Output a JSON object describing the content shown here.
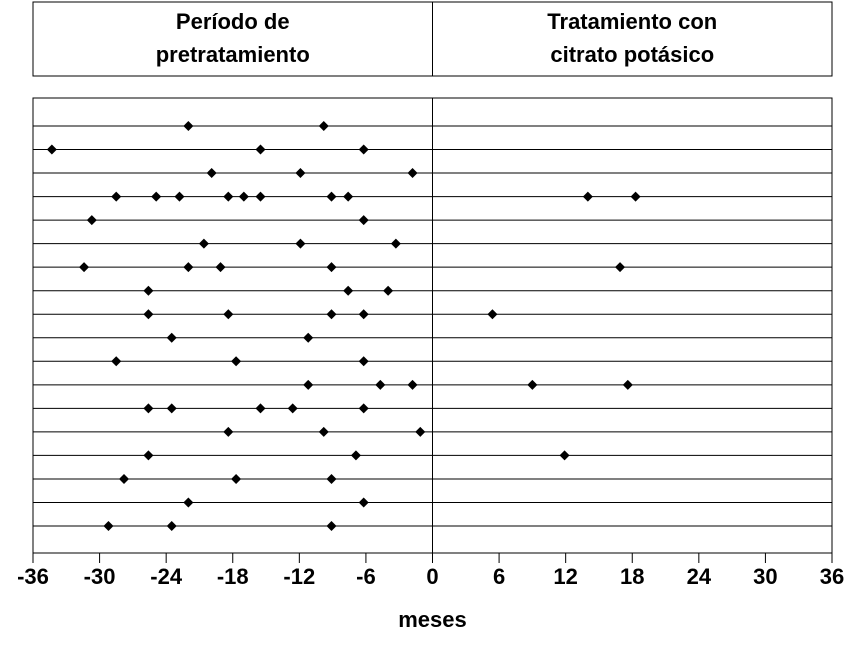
{
  "chart_data": {
    "type": "dot",
    "panels": [
      {
        "title": [
          "Período de",
          "pretratamiento"
        ]
      },
      {
        "title": [
          "Tratamiento con",
          "citrato potásico"
        ]
      }
    ],
    "xlabel": "meses",
    "xlim": [
      -36,
      36
    ],
    "xticks": [
      -36,
      -30,
      -24,
      -18,
      -12,
      -6,
      0,
      6,
      12,
      18,
      24,
      30,
      36
    ],
    "color": "#000000",
    "series": [
      {
        "values": [
          -22.0,
          -9.8
        ]
      },
      {
        "values": [
          -34.3,
          -15.5,
          -6.2
        ]
      },
      {
        "values": [
          -19.9,
          -11.9,
          -1.8
        ]
      },
      {
        "values": [
          -28.5,
          -24.9,
          -22.8,
          -18.4,
          -17.0,
          -15.5,
          -9.1,
          -7.6,
          14.0,
          18.3
        ]
      },
      {
        "values": [
          -30.7,
          -6.2
        ]
      },
      {
        "values": [
          -20.6,
          -11.9,
          -3.3
        ]
      },
      {
        "values": [
          -31.4,
          -22.0,
          -19.1,
          -9.1,
          16.9
        ]
      },
      {
        "values": [
          -25.6,
          -7.6,
          -4.0
        ]
      },
      {
        "values": [
          -25.6,
          -18.4,
          -9.1,
          -6.2,
          5.4
        ]
      },
      {
        "values": [
          -23.5,
          -11.2
        ]
      },
      {
        "values": [
          -28.5,
          -17.7,
          -6.2
        ]
      },
      {
        "values": [
          -11.2,
          -4.7,
          -1.8,
          9.0,
          17.6
        ]
      },
      {
        "values": [
          -25.6,
          -23.5,
          -15.5,
          -12.6,
          -6.2
        ]
      },
      {
        "values": [
          -18.4,
          -9.8,
          -1.1
        ]
      },
      {
        "values": [
          -25.6,
          -6.9,
          11.9
        ]
      },
      {
        "values": [
          -27.8,
          -17.7,
          -9.1
        ]
      },
      {
        "values": [
          -22.0,
          -6.2
        ]
      },
      {
        "values": [
          -29.2,
          -23.5,
          -9.1
        ]
      }
    ]
  }
}
